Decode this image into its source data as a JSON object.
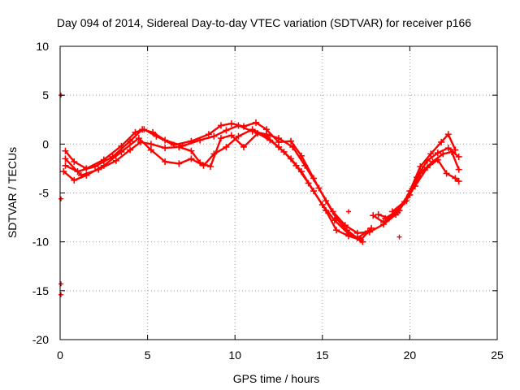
{
  "chart_data": {
    "type": "line",
    "title": "Day 094 of 2014, Sidereal Day-to-day VTEC variation (SDTVAR) for receiver p166",
    "xlabel": "GPS time / hours",
    "ylabel": "SDTVAR / TECUs",
    "xlim": [
      0,
      25
    ],
    "ylim": [
      -20,
      10
    ],
    "xticks": [
      0,
      5,
      10,
      15,
      20,
      25
    ],
    "yticks": [
      -20,
      -15,
      -10,
      -5,
      0,
      5,
      10
    ],
    "xtick_labels": [
      "0",
      "5",
      "10",
      "15",
      "20",
      "25"
    ],
    "ytick_labels": [
      "-20",
      "-15",
      "-10",
      "-5",
      "0",
      "5",
      "10"
    ],
    "grid": true,
    "series_color": "#ff0000",
    "series": [
      {
        "name": "track-1",
        "x": [
          0.3,
          0.8,
          1.5,
          2.5,
          3.5,
          4.3,
          4.8,
          5.5,
          6.5,
          7.5,
          8.5,
          9.2,
          9.8,
          10.5,
          11.2,
          11.8,
          12.5,
          13.2,
          13.8,
          14.5,
          15.2,
          15.8,
          16.4,
          17.0,
          17.6
        ],
        "y": [
          -0.7,
          -1.8,
          -2.5,
          -1.6,
          -0.2,
          1.2,
          1.5,
          0.8,
          -0.1,
          0.3,
          1.0,
          1.9,
          2.1,
          1.8,
          2.2,
          1.5,
          0.2,
          0.3,
          -1.2,
          -3.5,
          -5.8,
          -7.6,
          -8.8,
          -9.6,
          -8.9
        ]
      },
      {
        "name": "track-2",
        "x": [
          0.3,
          1.0,
          2.0,
          3.0,
          4.0,
          4.7,
          5.3,
          6.0,
          7.0,
          8.0,
          8.8,
          9.5,
          10.2,
          11.0,
          11.8,
          12.5,
          13.3,
          14.0,
          14.8,
          15.6,
          16.3,
          17.0,
          17.7,
          18.5,
          19.2
        ],
        "y": [
          -2.2,
          -2.8,
          -2.3,
          -1.3,
          0.3,
          1.5,
          1.2,
          0.4,
          -0.2,
          0.4,
          0.8,
          1.4,
          1.9,
          1.3,
          1.0,
          0.6,
          -0.3,
          -2.2,
          -4.5,
          -6.9,
          -8.3,
          -9.1,
          -9.0,
          -8.2,
          -7.2
        ]
      },
      {
        "name": "track-3",
        "x": [
          0.2,
          0.8,
          1.5,
          2.5,
          3.5,
          4.5,
          5.2,
          6.0,
          6.8,
          7.5,
          8.2,
          8.8,
          9.5,
          10.2,
          11.0,
          11.8,
          12.5,
          13.2,
          13.8,
          14.5,
          15.2,
          15.8,
          16.5,
          17.2,
          17.8
        ],
        "y": [
          -2.8,
          -3.7,
          -3.2,
          -2.2,
          -0.8,
          0.6,
          -0.6,
          -1.8,
          -2.0,
          -1.5,
          -2.2,
          -1.0,
          -0.3,
          0.8,
          1.5,
          0.8,
          -0.3,
          -1.5,
          -2.8,
          -4.8,
          -6.8,
          -8.8,
          -9.4,
          -9.8,
          -8.6
        ]
      },
      {
        "name": "track-4",
        "x": [
          0.3,
          1.2,
          2.2,
          3.2,
          4.0,
          4.6,
          5.2,
          6.0,
          6.8,
          7.5,
          8.0,
          8.6,
          9.2,
          9.8,
          10.5,
          11.3,
          12.0,
          12.8,
          13.5,
          14.2,
          15.0,
          15.7,
          16.5,
          17.3
        ],
        "y": [
          -1.5,
          -3.2,
          -2.6,
          -1.7,
          -0.6,
          0.2,
          0.0,
          -0.4,
          -0.3,
          -0.7,
          -1.9,
          -2.3,
          0.6,
          0.9,
          -0.3,
          1.1,
          0.4,
          -0.8,
          -2.2,
          -4.0,
          -6.2,
          -7.8,
          -9.2,
          -10.0
        ]
      },
      {
        "name": "track-5",
        "x": [
          18.2,
          18.8,
          19.4,
          20.0,
          20.6,
          21.2,
          21.8,
          22.2,
          22.6
        ],
        "y": [
          -7.2,
          -7.6,
          -6.8,
          -4.8,
          -2.3,
          -1.0,
          0.2,
          1.0,
          -0.6
        ]
      },
      {
        "name": "track-6",
        "x": [
          18.6,
          19.2,
          19.8,
          20.4,
          21.0,
          21.6,
          22.2,
          22.8
        ],
        "y": [
          -7.6,
          -6.9,
          -5.8,
          -3.4,
          -1.7,
          -0.9,
          -0.4,
          -1.3
        ]
      },
      {
        "name": "track-7",
        "x": [
          17.9,
          18.5,
          19.3,
          20.0,
          20.6,
          21.3,
          21.9,
          22.4,
          22.8
        ],
        "y": [
          -7.3,
          -8.0,
          -7.0,
          -5.2,
          -3.0,
          -1.8,
          -1.0,
          -0.8,
          -2.6
        ]
      },
      {
        "name": "track-8",
        "x": [
          19.0,
          19.7,
          20.3,
          21.0,
          21.6,
          22.1,
          22.6,
          22.8
        ],
        "y": [
          -6.9,
          -5.9,
          -4.3,
          -2.4,
          -1.6,
          -3.0,
          -3.5,
          -3.8
        ]
      }
    ],
    "isolated_marks": [
      {
        "x": 0.05,
        "y": 5.0
      },
      {
        "x": 0.05,
        "y": -5.6
      },
      {
        "x": 0.05,
        "y": -14.3
      },
      {
        "x": 0.05,
        "y": -15.4
      },
      {
        "x": 16.5,
        "y": -6.9
      },
      {
        "x": 19.4,
        "y": -9.5
      }
    ]
  }
}
